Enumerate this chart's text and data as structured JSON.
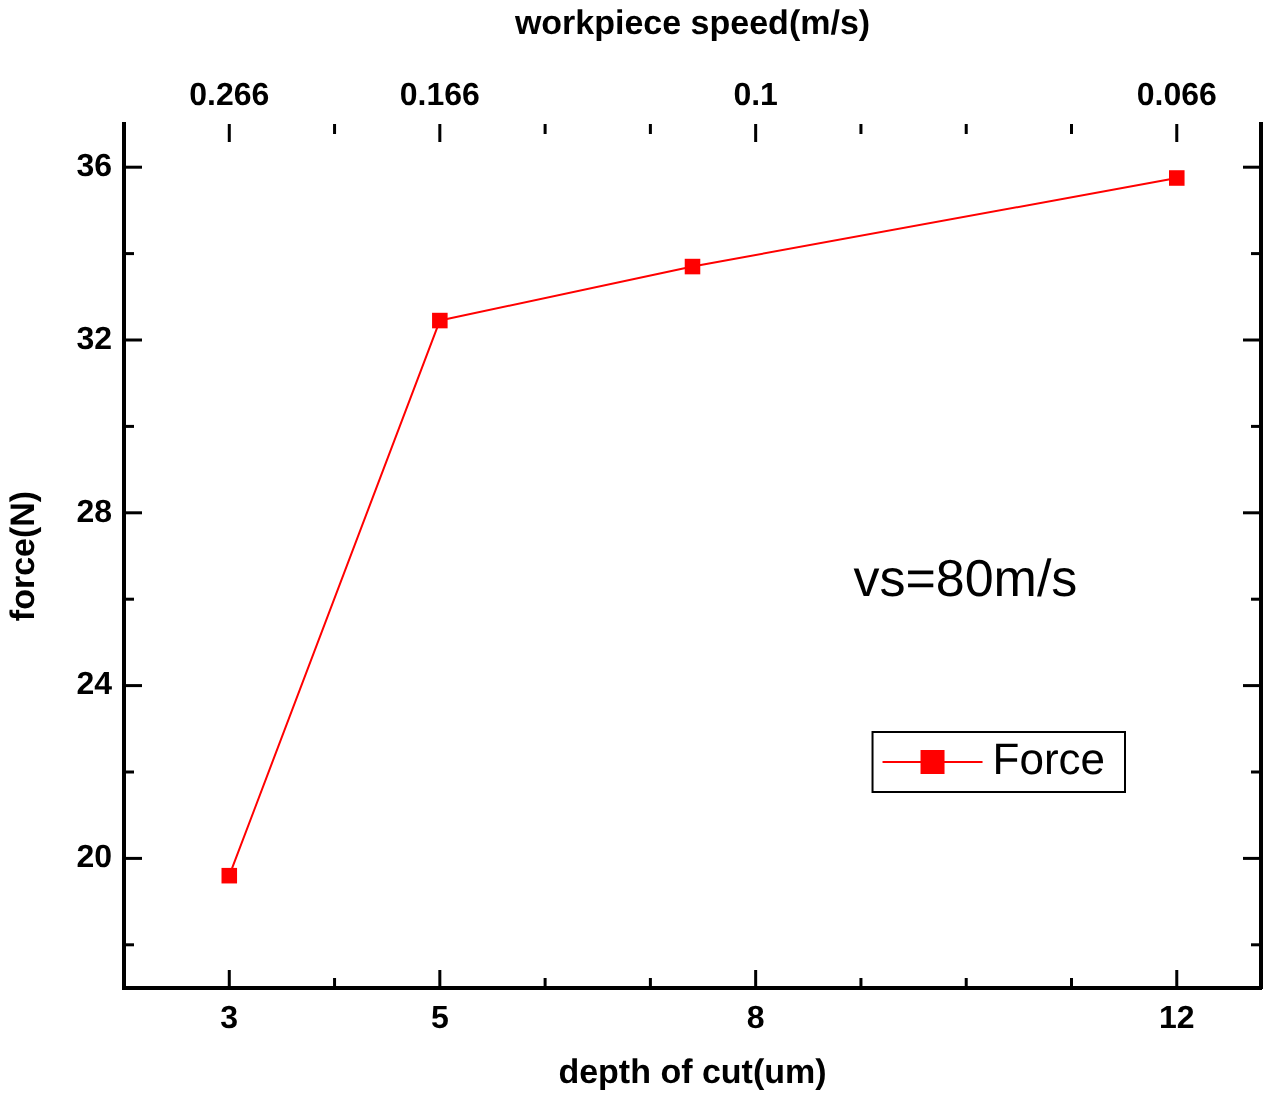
{
  "chart_data": {
    "type": "line",
    "xlabel": "depth of cut(um)",
    "ylabel": "force(N)",
    "x2label": "workpiece speed(m/s)",
    "x": [
      3,
      5,
      7.4,
      12
    ],
    "series": [
      {
        "name": "Force",
        "color": "#ff0000",
        "values": [
          19.6,
          32.45,
          33.7,
          35.75
        ]
      }
    ],
    "xlim": [
      2,
      12.8
    ],
    "xticks": [
      3,
      {
        "value": 4,
        "label": null
      },
      5,
      {
        "value": 6,
        "label": null
      },
      {
        "value": 7,
        "label": null
      },
      8,
      {
        "value": 9,
        "label": null
      },
      {
        "value": 10,
        "label": null
      },
      {
        "value": 11,
        "label": null
      },
      12
    ],
    "ylim": [
      17,
      37
    ],
    "yticks": [
      {
        "value": 18,
        "label": null
      },
      20,
      {
        "value": 22,
        "label": null
      },
      24,
      {
        "value": 26,
        "label": null
      },
      28,
      {
        "value": 30,
        "label": null
      },
      32,
      {
        "value": 34,
        "label": null
      },
      36
    ],
    "annotations": [
      "vs=80m/s",
      {
        "text": "0.266",
        "x": 3
      },
      {
        "text": "0.166",
        "x": 5
      },
      "0.1",
      {
        "text": "0.066",
        "x": 12
      }
    ],
    "grid": false,
    "legend": "bottom right",
    "marker": "square",
    "line_style": "solid"
  }
}
